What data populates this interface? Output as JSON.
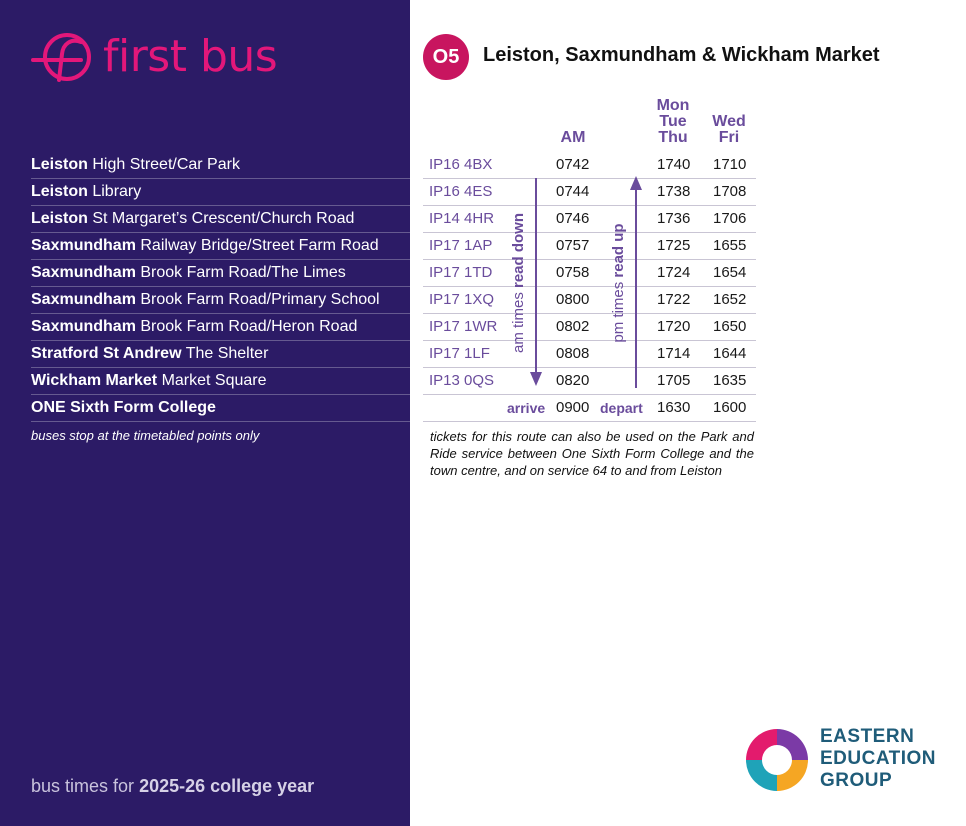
{
  "brand": {
    "name": "first bus"
  },
  "route": {
    "number": "O5",
    "title": "Leiston, Saxmundham & Wickham Market"
  },
  "columns": {
    "am": "AM",
    "mon_tue_thu": [
      "Mon",
      "Tue",
      "Thu"
    ],
    "wed_fri": [
      "Wed",
      "Fri"
    ]
  },
  "stops": [
    {
      "town": "Leiston",
      "place": "High Street/Car Park",
      "postcode": "IP16 4BX",
      "am": "0742",
      "mtt": "1740",
      "wf": "1710"
    },
    {
      "town": "Leiston",
      "place": "Library",
      "postcode": "IP16 4ES",
      "am": "0744",
      "mtt": "1738",
      "wf": "1708"
    },
    {
      "town": "Leiston",
      "place": "St Margaret’s Crescent/Church Road",
      "postcode": "IP14 4HR",
      "am": "0746",
      "mtt": "1736",
      "wf": "1706"
    },
    {
      "town": "Saxmundham",
      "place": "Railway Bridge/Street Farm Road",
      "postcode": "IP17 1AP",
      "am": "0757",
      "mtt": "1725",
      "wf": "1655"
    },
    {
      "town": "Saxmundham",
      "place": "Brook Farm Road/The Limes",
      "postcode": "IP17 1TD",
      "am": "0758",
      "mtt": "1724",
      "wf": "1654"
    },
    {
      "town": "Saxmundham",
      "place": "Brook Farm Road/Primary School",
      "postcode": "IP17 1XQ",
      "am": "0800",
      "mtt": "1722",
      "wf": "1652"
    },
    {
      "town": "Saxmundham",
      "place": "Brook Farm Road/Heron Road",
      "postcode": "IP17 1WR",
      "am": "0802",
      "mtt": "1720",
      "wf": "1650"
    },
    {
      "town": "Stratford St Andrew",
      "place": "The Shelter",
      "postcode": "IP17 1LF",
      "am": "0808",
      "mtt": "1714",
      "wf": "1644"
    },
    {
      "town": "Wickham Market",
      "place": "Market Square",
      "postcode": "IP13 0QS",
      "am": "0820",
      "mtt": "1705",
      "wf": "1635"
    }
  ],
  "final_stop": {
    "town": "ONE Sixth Form College",
    "arrive_label": "arrive",
    "am": "0900",
    "depart_label": "depart",
    "mtt": "1630",
    "wf": "1600"
  },
  "am_read": {
    "prefix": "am times",
    "emphasis": "read down"
  },
  "pm_read": {
    "prefix": "pm times",
    "emphasis": "read up"
  },
  "stops_note": "buses stop at the timetabled points only",
  "ticket_note": "tickets for this route can also be used on the Park and Ride service between One Sixth Form College and the town centre, and on service 64 to and from Leiston",
  "footer": {
    "prefix": "bus times for",
    "emphasis": "2025-26 college year"
  },
  "partner": {
    "lines": [
      "EASTERN",
      "EDUCATION",
      "GROUP"
    ]
  },
  "colors": {
    "panel": "#2c1b66",
    "brand_pink": "#e3177a",
    "badge": "#c8155f",
    "accent_purple": "#6a4c9c",
    "partner_text": "#1f5c79"
  }
}
